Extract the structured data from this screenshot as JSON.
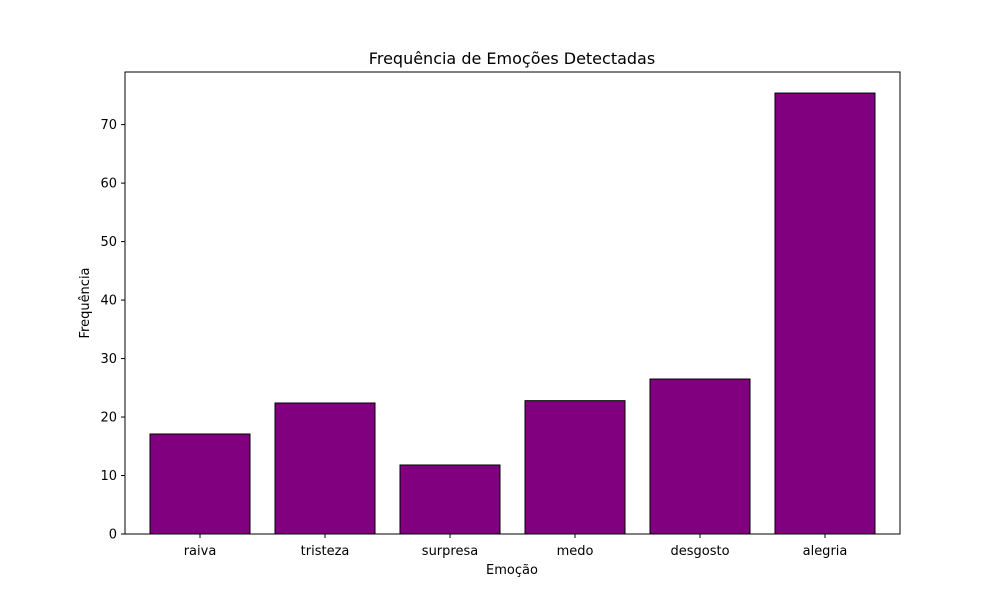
{
  "chart_data": {
    "type": "bar",
    "title": "Frequência de Emoções Detectadas",
    "xlabel": "Emoção",
    "ylabel": "Frequência",
    "categories": [
      "raiva",
      "tristeza",
      "surpresa",
      "medo",
      "desgosto",
      "alegria"
    ],
    "values": [
      17.1,
      22.4,
      11.8,
      22.8,
      26.5,
      75.4
    ],
    "ylim": [
      0,
      79
    ],
    "yticks": [
      0,
      10,
      20,
      30,
      40,
      50,
      60,
      70
    ],
    "bar_color": "#800080",
    "edge_color": "#000000",
    "grid": false,
    "legend": "none"
  }
}
